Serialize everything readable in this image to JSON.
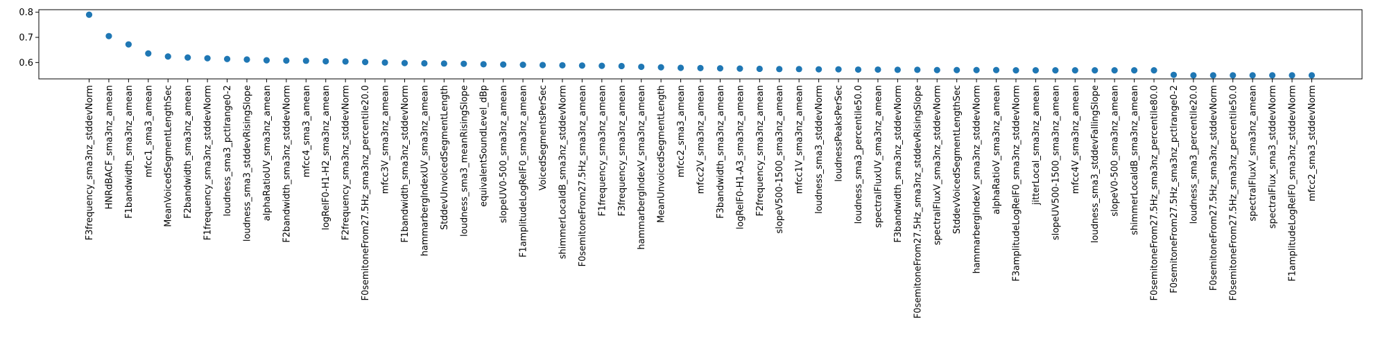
{
  "chart_data": {
    "type": "scatter",
    "title": "",
    "xlabel": "",
    "ylabel": "",
    "ylim": [
      0.535,
      0.81
    ],
    "yticks": [
      "0.6",
      "0.7",
      "0.8"
    ],
    "grid": false,
    "legend": "none",
    "marker_color": "#1f77b4",
    "categories": [
      "F3frequency_sma3nz_stddevNorm",
      "HNRdBACF_sma3nz_amean",
      "F1bandwidth_sma3nz_amean",
      "mfcc1_sma3_amean",
      "MeanVoicedSegmentLengthSec",
      "F2bandwidth_sma3nz_amean",
      "F1frequency_sma3nz_stddevNorm",
      "loudness_sma3_pctlrange0-2",
      "loudness_sma3_stddevRisingSlope",
      "alphaRatioUV_sma3nz_amean",
      "F2bandwidth_sma3nz_stddevNorm",
      "mfcc4_sma3_amean",
      "logRelF0-H1-H2_sma3nz_amean",
      "F2frequency_sma3nz_stddevNorm",
      "F0semitoneFrom27.5Hz_sma3nz_percentile20.0",
      "mfcc3V_sma3nz_amean",
      "F1bandwidth_sma3nz_stddevNorm",
      "hammarbergIndexUV_sma3nz_amean",
      "StddevUnvoicedSegmentLength",
      "loudness_sma3_meanRisingSlope",
      "equivalentSoundLevel_dBp",
      "slopeUV0-500_sma3nz_amean",
      "F1amplitudeLogRelF0_sma3nz_amean",
      "VoicedSegmentsPerSec",
      "shimmerLocaldB_sma3nz_stddevNorm",
      "F0semitoneFrom27.5Hz_sma3nz_amean",
      "F1frequency_sma3nz_amean",
      "F3frequency_sma3nz_amean",
      "hammarbergIndexV_sma3nz_amean",
      "MeanUnvoicedSegmentLength",
      "mfcc2_sma3_amean",
      "mfcc2V_sma3nz_amean",
      "F3bandwidth_sma3nz_amean",
      "logRelF0-H1-A3_sma3nz_amean",
      "F2frequency_sma3nz_amean",
      "slopeV500-1500_sma3nz_amean",
      "mfcc1V_sma3nz_amean",
      "loudness_sma3_stddevNorm",
      "loudnessPeaksPerSec",
      "loudness_sma3_percentile50.0",
      "spectralFluxUV_sma3nz_amean",
      "F3bandwidth_sma3nz_stddevNorm",
      "F0semitoneFrom27.5Hz_sma3nz_stddevRisingSlope",
      "spectralFluxV_sma3nz_stddevNorm",
      "StddevVoicedSegmentLengthSec",
      "hammarbergIndexV_sma3nz_stddevNorm",
      "alphaRatioV_sma3nz_amean",
      "F3amplitudeLogRelF0_sma3nz_stddevNorm",
      "jitterLocal_sma3nz_amean",
      "slopeUV500-1500_sma3nz_amean",
      "mfcc4V_sma3nz_amean",
      "loudness_sma3_stddevFallingSlope",
      "slopeV0-500_sma3nz_amean",
      "shimmerLocaldB_sma3nz_amean",
      "F0semitoneFrom27.5Hz_sma3nz_percentile80.0",
      "F0semitoneFrom27.5Hz_sma3nz_pctlrange0-2",
      "loudness_sma3_percentile20.0",
      "F0semitoneFrom27.5Hz_sma3nz_stddevNorm",
      "F0semitoneFrom27.5Hz_sma3nz_percentile50.0",
      "spectralFluxV_sma3nz_amean",
      "spectralFlux_sma3_stddevNorm",
      "F1amplitudeLogRelF0_sma3nz_stddevNorm",
      "mfcc2_sma3_stddevNorm"
    ],
    "values": [
      0.79,
      0.705,
      0.672,
      0.636,
      0.624,
      0.62,
      0.617,
      0.614,
      0.612,
      0.609,
      0.608,
      0.607,
      0.605,
      0.604,
      0.602,
      0.6,
      0.598,
      0.597,
      0.596,
      0.595,
      0.593,
      0.592,
      0.591,
      0.59,
      0.589,
      0.588,
      0.587,
      0.586,
      0.583,
      0.581,
      0.579,
      0.578,
      0.577,
      0.576,
      0.575,
      0.574,
      0.574,
      0.573,
      0.573,
      0.572,
      0.572,
      0.571,
      0.571,
      0.57,
      0.57,
      0.57,
      0.57,
      0.569,
      0.569,
      0.569,
      0.569,
      0.569,
      0.569,
      0.569,
      0.569,
      0.551,
      0.549,
      0.549,
      0.549,
      0.549,
      0.549,
      0.549,
      0.549
    ]
  }
}
